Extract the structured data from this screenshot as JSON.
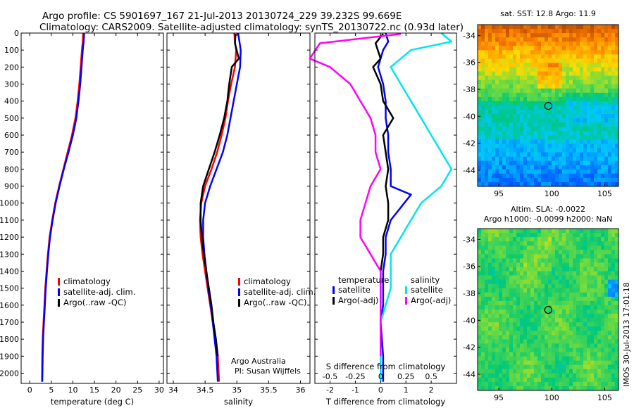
{
  "title": {
    "line1": "Argo profile: CS 5901697_167 21-Jul-2013 20130724_229 39.232S 99.669E",
    "line2": "Climatology: CARS2009. Satellite-adjusted climatology: synTS_20130722.nc (0.93d later)"
  },
  "colors": {
    "climatology": "#ff0000",
    "satellite": "#0000ff",
    "argo": "#000000",
    "sal_satellite": "#00e5ee",
    "sal_argo": "#ff00ff"
  },
  "depth_ticks": [
    "0",
    "100",
    "200",
    "300",
    "400",
    "500",
    "600",
    "700",
    "800",
    "900",
    "1000",
    "1100",
    "1200",
    "1300",
    "1400",
    "1500",
    "1600",
    "1700",
    "1800",
    "1900",
    "2000"
  ],
  "chart_data": [
    {
      "type": "line",
      "xlabel": "temperature (deg C)",
      "xticks": [
        "0",
        "5",
        "10",
        "15",
        "20",
        "25",
        "30"
      ],
      "xlim": [
        -2,
        31
      ],
      "ylim": [
        2060,
        0
      ],
      "legend": {
        "placement": "lower-middle",
        "entries": [
          "climatology",
          "satellite-adj. clim.",
          "Argo(..raw -QC)"
        ]
      },
      "series": [
        {
          "name": "climatology",
          "color": "#ff0000",
          "x": [
            12.4,
            12.3,
            12.1,
            11.8,
            11.5,
            11.1,
            10.6,
            9.8,
            8.8,
            7.8,
            6.8,
            5.9,
            5.2,
            4.6,
            4.2,
            3.9,
            3.6,
            3.4,
            3.2,
            3.0,
            2.9,
            2.85
          ],
          "y": [
            0,
            50,
            100,
            200,
            300,
            400,
            500,
            600,
            700,
            800,
            900,
            1000,
            1100,
            1200,
            1300,
            1400,
            1500,
            1600,
            1700,
            1800,
            1900,
            2050
          ]
        },
        {
          "name": "satellite-adj. clim.",
          "color": "#0000ff",
          "x": [
            12.6,
            12.5,
            12.3,
            12.0,
            11.7,
            11.3,
            10.8,
            10.0,
            9.0,
            7.9,
            6.9,
            6.0,
            5.3,
            4.7,
            4.3,
            4.0,
            3.7,
            3.5,
            3.3,
            3.1,
            3.0,
            2.9
          ],
          "y": [
            0,
            50,
            100,
            200,
            300,
            400,
            500,
            600,
            700,
            800,
            900,
            1000,
            1100,
            1200,
            1300,
            1400,
            1500,
            1600,
            1700,
            1800,
            1900,
            2050
          ]
        }
      ]
    },
    {
      "type": "line",
      "xlabel": "salinity",
      "xticks": [
        "34",
        "34.5",
        "35",
        "35.5",
        "36"
      ],
      "xlim": [
        33.9,
        36.15
      ],
      "ylim": [
        2060,
        0
      ],
      "legend": {
        "placement": "lower-middle",
        "entries": [
          "climatology",
          "satellite-adj. clim.",
          "Argo(..raw -QC)"
        ]
      },
      "annotation": [
        "Argo Australia",
        "PI: Susan Wijffels"
      ],
      "series": [
        {
          "name": "climatology",
          "color": "#ff0000",
          "x": [
            34.96,
            34.97,
            34.99,
            34.97,
            34.91,
            34.86,
            34.82,
            34.76,
            34.69,
            34.6,
            34.5,
            34.44,
            34.42,
            34.43,
            34.46,
            34.5,
            34.54,
            34.58,
            34.62,
            34.66,
            34.7,
            34.72
          ],
          "y": [
            0,
            50,
            100,
            200,
            300,
            400,
            500,
            600,
            700,
            800,
            900,
            1000,
            1100,
            1200,
            1300,
            1400,
            1500,
            1600,
            1700,
            1800,
            1900,
            2050
          ]
        },
        {
          "name": "satellite-adj. clim.",
          "color": "#0000ff",
          "x": [
            35.02,
            35.04,
            35.06,
            35.05,
            35.0,
            34.95,
            34.9,
            34.85,
            34.78,
            34.68,
            34.58,
            34.5,
            34.47,
            34.47,
            34.49,
            34.52,
            34.55,
            34.59,
            34.62,
            34.65,
            34.68,
            34.7
          ],
          "y": [
            0,
            50,
            100,
            200,
            300,
            400,
            500,
            600,
            700,
            800,
            900,
            1000,
            1100,
            1200,
            1300,
            1400,
            1500,
            1600,
            1700,
            1800,
            1900,
            2050
          ]
        },
        {
          "name": "Argo(..raw -QC)",
          "color": "#000000",
          "x": [
            34.98,
            34.97,
            35.03,
            34.92,
            34.88,
            34.85,
            34.8,
            34.73,
            34.65,
            34.56,
            34.47,
            34.43,
            34.43,
            34.45,
            34.48,
            34.52,
            34.56,
            34.6,
            34.63,
            34.67,
            34.7
          ],
          "y": [
            5,
            60,
            150,
            200,
            300,
            400,
            500,
            600,
            700,
            800,
            900,
            1000,
            1100,
            1200,
            1300,
            1400,
            1500,
            1600,
            1700,
            1800,
            1900
          ]
        }
      ]
    },
    {
      "type": "line",
      "xlabel": "T difference from climatology",
      "xlabel_top": "S difference from climatology",
      "xticks": [
        "-2",
        "-1",
        "0",
        "1",
        "2"
      ],
      "xticks_top": [
        "-0.5",
        "-0.25",
        "0",
        "0.25",
        "0.5"
      ],
      "xlim": [
        -2.6,
        3.0
      ],
      "ylim": [
        2060,
        0
      ],
      "legend": {
        "placement": "lower-left",
        "headers": [
          "temperature",
          "salinity"
        ],
        "entries": [
          "satellite",
          "Argo(-adj)",
          "satellite",
          "Argo(-adj)"
        ]
      },
      "series": [
        {
          "name": "temperature satellite",
          "color": "#0000ff",
          "x": [
            0.2,
            0.3,
            0.1,
            -0.1,
            0.1,
            0.2,
            0.2,
            0.3,
            0.3,
            0.4,
            0.4,
            1.2,
            0.4,
            0.2,
            0.2,
            0.1,
            0.1,
            0.1,
            0.0,
            0.05,
            0.1,
            0.1
          ],
          "y": [
            0,
            50,
            100,
            200,
            300,
            400,
            500,
            600,
            700,
            800,
            900,
            950,
            1100,
            1200,
            1300,
            1400,
            1500,
            1600,
            1700,
            1800,
            1900,
            2050
          ]
        },
        {
          "name": "temperature Argo(-adj)",
          "color": "#000000",
          "x": [
            0.1,
            -0.2,
            0.0,
            -0.3,
            0.0,
            0.1,
            0.5,
            0.1,
            0.2,
            0.3,
            0.2,
            0.3,
            0.3,
            0.1,
            0.1,
            0.0,
            0.0,
            0.0,
            0.0,
            0.0,
            0.0
          ],
          "y": [
            5,
            60,
            150,
            200,
            300,
            400,
            500,
            600,
            700,
            800,
            900,
            1000,
            1100,
            1200,
            1300,
            1400,
            1500,
            1600,
            1700,
            1800,
            1900
          ]
        },
        {
          "name": "salinity satellite",
          "color": "#00e5ee",
          "x": [
            0.6,
            0.7,
            0.3,
            0.1,
            0.2,
            0.3,
            0.4,
            0.5,
            0.6,
            0.7,
            0.6,
            0.4,
            0.3,
            0.2,
            0.1,
            0.1,
            0.1,
            0.05,
            0.0,
            0.0,
            0.0,
            0.0
          ],
          "y": [
            0,
            50,
            100,
            200,
            300,
            400,
            500,
            600,
            700,
            800,
            900,
            1000,
            1100,
            1200,
            1300,
            1400,
            1500,
            1600,
            1700,
            1800,
            1900,
            2050
          ]
        },
        {
          "name": "salinity Argo(-adj)",
          "color": "#ff00ff",
          "x": [
            0.2,
            -0.6,
            -0.7,
            -0.5,
            -0.3,
            -0.2,
            -0.1,
            -0.05,
            -0.05,
            0.0,
            -0.1,
            -0.15,
            -0.2,
            -0.2,
            -0.1,
            0.0,
            0.0,
            0.0,
            0.0,
            0.0,
            0.0
          ],
          "y": [
            5,
            60,
            150,
            200,
            300,
            400,
            500,
            600,
            700,
            800,
            900,
            1000,
            1100,
            1200,
            1300,
            1400,
            1500,
            1600,
            1700,
            1800,
            1900
          ]
        }
      ]
    },
    {
      "type": "heatmap",
      "title": "sat. SST: 12.8 Argo: 11.9",
      "xticks": [
        "95",
        "100",
        "105"
      ],
      "yticks": [
        "-34",
        "-36",
        "-38",
        "-40",
        "-42",
        "-44"
      ],
      "xlim": [
        93,
        106.3
      ],
      "ylim": [
        -45.2,
        -33.2
      ],
      "marker": {
        "lon": 99.67,
        "lat": -39.23
      }
    },
    {
      "type": "heatmap",
      "title_line1": "Altim. SLA: -0.0022",
      "title_line2": "Argo h1000: -0.0099 h2000: NaN",
      "xticks": [
        "95",
        "100",
        "105"
      ],
      "yticks": [
        "-34",
        "-36",
        "-38",
        "-40",
        "-42",
        "-44"
      ],
      "xlim": [
        93,
        106.3
      ],
      "ylim": [
        -45.2,
        -33.2
      ],
      "marker": {
        "lon": 99.67,
        "lat": -39.23
      }
    }
  ],
  "stamp": "IMOS 30-Jul-2013 17:01:18"
}
